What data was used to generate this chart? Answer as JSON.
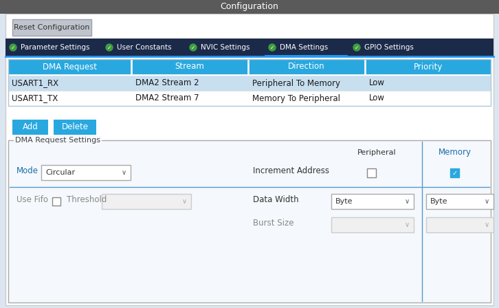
{
  "title": "Configuration",
  "title_bg": "#5a5a5a",
  "title_color": "#ffffff",
  "outer_bg": "#dce6f0",
  "panel_bg": "#ffffff",
  "tab_bar_bg": "#1c2a4a",
  "tab_active_name": "DMA Settings",
  "tabs": [
    "Parameter Settings",
    "User Constants",
    "NVIC Settings",
    "DMA Settings",
    "GPIO Settings"
  ],
  "tab_text_color": "#ffffff",
  "tab_active_underline": "#2196F3",
  "table_header_bg": "#29a8df",
  "table_header_text": "#ffffff",
  "table_row1_bg": "#c8dff0",
  "table_row2_bg": "#ffffff",
  "table_border": "#b0c8d8",
  "table_columns": [
    "DMA Request",
    "Stream",
    "Direction",
    "Priority"
  ],
  "table_rows": [
    [
      "USART1_RX",
      "DMA2 Stream 2",
      "Peripheral To Memory",
      "Low"
    ],
    [
      "USART1_TX",
      "DMA2 Stream 7",
      "Memory To Peripheral",
      "Low"
    ]
  ],
  "btn_color": "#29a8df",
  "btn_text_color": "#ffffff",
  "settings_label": "DMA Request Settings",
  "settings_box_bg": "#f5f8fc",
  "peripheral_label": "Peripheral",
  "memory_label": "Memory",
  "memory_label_color": "#1a6ea8",
  "mode_label": "Mode",
  "mode_label_color": "#1a6ea8",
  "mode_value": "Circular",
  "increment_label": "Increment Address",
  "use_fifo_label": "Use Fifo",
  "use_fifo_color": "#888888",
  "threshold_label": "Threshold",
  "threshold_color": "#888888",
  "data_width_label": "Data Width",
  "data_width_value": "Byte",
  "burst_size_label": "Burst Size",
  "burst_size_color": "#888888",
  "divider_color": "#5599cc",
  "col_divider_color": "#5599cc",
  "dropdown_border": "#aaaaaa",
  "checkbox_checked_color": "#29a8df",
  "checkbox_border": "#888888"
}
